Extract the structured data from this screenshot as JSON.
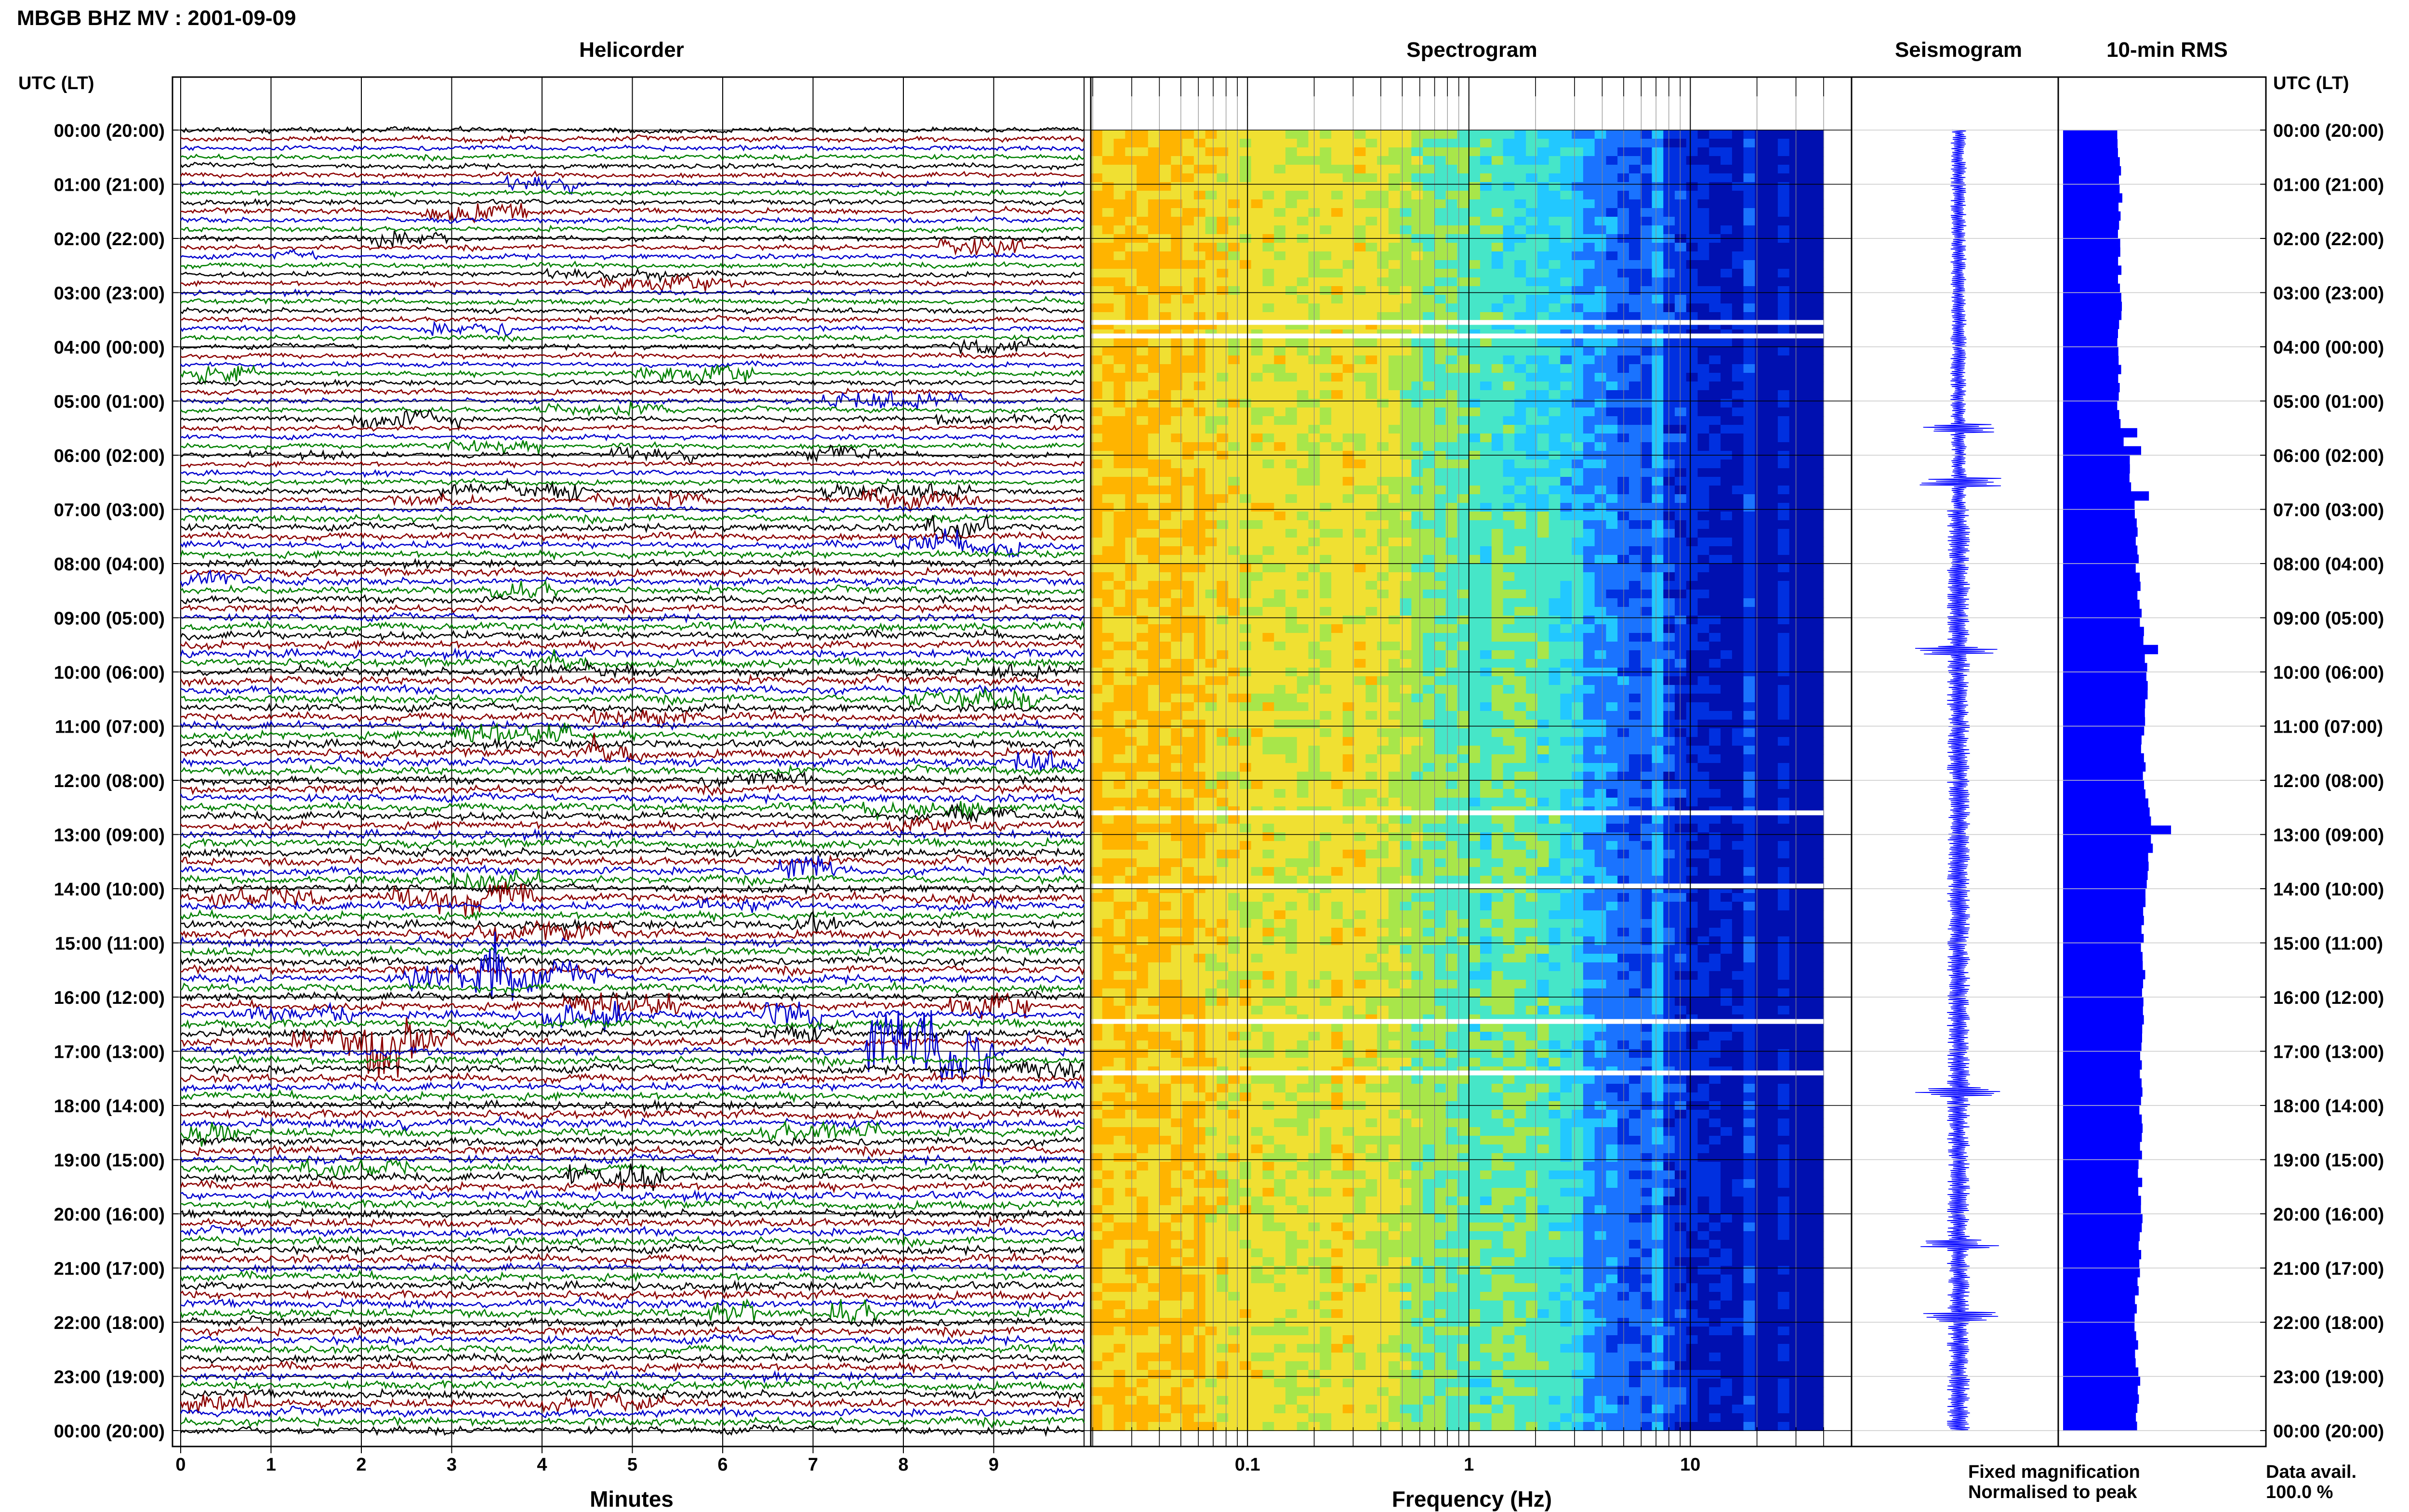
{
  "figure": {
    "title": "MBGB BHZ MV : 2001-09-09",
    "panel_titles": {
      "helicorder": "Helicorder",
      "spectrogram": "Spectrogram",
      "seismogram": "Seismogram",
      "rms": "10-min RMS"
    },
    "time_axis_header_left": "UTC (LT)",
    "time_axis_header_right": "UTC (LT)",
    "legend": {
      "fixed": "Fixed magnification",
      "normalised": "Normalised to peak",
      "fixed_color": "#0000ff",
      "normalised_color": "#ff0000"
    },
    "data_avail_label": "Data avail.",
    "data_avail_value": "100.0 %"
  },
  "chart_data": [
    {
      "type": "line",
      "name": "helicorder",
      "xlabel": "Minutes",
      "x_ticks": [
        "0",
        "1",
        "2",
        "3",
        "4",
        "5",
        "6",
        "7",
        "8",
        "9"
      ],
      "xlim": [
        0,
        10
      ],
      "time_labels": [
        "00:00 (20:00)",
        "01:00 (21:00)",
        "02:00 (22:00)",
        "03:00 (23:00)",
        "04:00 (00:00)",
        "05:00 (01:00)",
        "06:00 (02:00)",
        "07:00 (03:00)",
        "08:00 (04:00)",
        "09:00 (05:00)",
        "10:00 (06:00)",
        "11:00 (07:00)",
        "12:00 (08:00)",
        "13:00 (09:00)",
        "14:00 (10:00)",
        "15:00 (11:00)",
        "16:00 (12:00)",
        "17:00 (13:00)",
        "18:00 (14:00)",
        "19:00 (15:00)",
        "20:00 (16:00)",
        "21:00 (17:00)",
        "22:00 (18:00)",
        "23:00 (19:00)",
        "00:00 (20:00)"
      ],
      "rows": 145,
      "trace_colors": [
        "#000000",
        "#8b0000",
        "#0000cd",
        "#008000"
      ]
    },
    {
      "type": "heatmap",
      "name": "spectrogram",
      "xlabel": "Frequency (Hz)",
      "x_scale": "log",
      "x_ticks": [
        "0.1",
        "1",
        "10"
      ],
      "xlim": [
        0.0196,
        40
      ],
      "gap_hours": [
        3.55,
        3.8,
        12.6,
        13.95,
        16.45,
        17.4
      ],
      "colors": [
        "#0010b0",
        "#0030e0",
        "#1a73ff",
        "#22c8ff",
        "#46e6c8",
        "#a8e64a",
        "#f0e032",
        "#ffb400",
        "#ff4800"
      ]
    },
    {
      "type": "line",
      "name": "seismogram",
      "events_hour": [
        5.5,
        6.5,
        9.6,
        17.75,
        20.55,
        21.9
      ]
    },
    {
      "type": "bar",
      "name": "10-min RMS",
      "orientation": "horizontal",
      "profile_hours": [
        0,
        1,
        2,
        3,
        4,
        5,
        6,
        7,
        8,
        9,
        10,
        11,
        12,
        13,
        14,
        15,
        16,
        17,
        18,
        19,
        20,
        21,
        22,
        23,
        24
      ],
      "profile_values": [
        0.43,
        0.44,
        0.43,
        0.44,
        0.43,
        0.43,
        0.5,
        0.56,
        0.57,
        0.6,
        0.65,
        0.61,
        0.63,
        0.68,
        0.64,
        0.61,
        0.62,
        0.6,
        0.6,
        0.59,
        0.6,
        0.58,
        0.56,
        0.58,
        0.56
      ],
      "spikes": [
        [
          5.5,
          0.57
        ],
        [
          5.85,
          0.6
        ],
        [
          6.6,
          0.66
        ],
        [
          9.55,
          0.73
        ],
        [
          12.85,
          0.83
        ],
        [
          13.1,
          0.69
        ]
      ]
    }
  ]
}
